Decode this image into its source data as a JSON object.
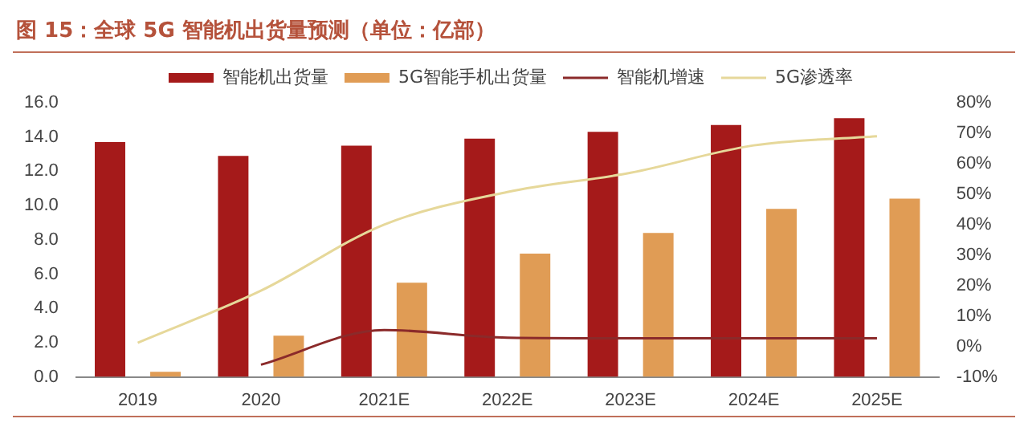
{
  "chart_data": {
    "type": "bar",
    "title": "图 15：全球 5G 智能机出货量预测（单位：亿部）",
    "categories": [
      "2019",
      "2020",
      "2021E",
      "2022E",
      "2023E",
      "2024E",
      "2025E"
    ],
    "series": [
      {
        "name": "智能机出货量",
        "color": "#a51a1a",
        "values": [
          13.7,
          12.9,
          13.5,
          13.9,
          14.3,
          14.7,
          15.1
        ]
      },
      {
        "name": "5G智能手机出货量",
        "color": "#e09c55",
        "values": [
          0.3,
          2.4,
          5.5,
          7.2,
          8.4,
          9.8,
          10.4
        ]
      },
      {
        "name": "智能机增速",
        "type": "line",
        "axis": "y2",
        "color": "#8b2a2a",
        "values": [
          null,
          -6,
          5.4,
          2.9,
          2.7,
          2.7,
          2.7
        ]
      },
      {
        "name": "5G渗透率",
        "type": "line",
        "axis": "y2",
        "color": "#e6d89a",
        "values": [
          1.2,
          18.3,
          40,
          50.7,
          57,
          66,
          69
        ]
      }
    ],
    "ylim": [
      0,
      16
    ],
    "yticks": [
      {
        "value": 0,
        "label": "0.0"
      },
      {
        "value": 2,
        "label": "2.0"
      },
      {
        "value": 4,
        "label": "4.0"
      },
      {
        "value": 6,
        "label": "6.0"
      },
      {
        "value": 8,
        "label": "8.0"
      },
      {
        "value": 10,
        "label": "10.0"
      },
      {
        "value": 12,
        "label": "12.0"
      },
      {
        "value": 14,
        "label": "14.0"
      },
      {
        "value": 16,
        "label": "16.0"
      }
    ],
    "y2lim": [
      -10,
      80
    ],
    "y2ticks": [
      {
        "value": -10,
        "label": "-10%"
      },
      {
        "value": 0,
        "label": "0%"
      },
      {
        "value": 10,
        "label": "10%"
      },
      {
        "value": 20,
        "label": "20%"
      },
      {
        "value": 30,
        "label": "30%"
      },
      {
        "value": 40,
        "label": "40%"
      },
      {
        "value": 50,
        "label": "50%"
      },
      {
        "value": 60,
        "label": "60%"
      },
      {
        "value": 70,
        "label": "70%"
      },
      {
        "value": 80,
        "label": "80%"
      }
    ],
    "grid": false,
    "legend": "top",
    "marker": "none",
    "line_style": "solid"
  }
}
